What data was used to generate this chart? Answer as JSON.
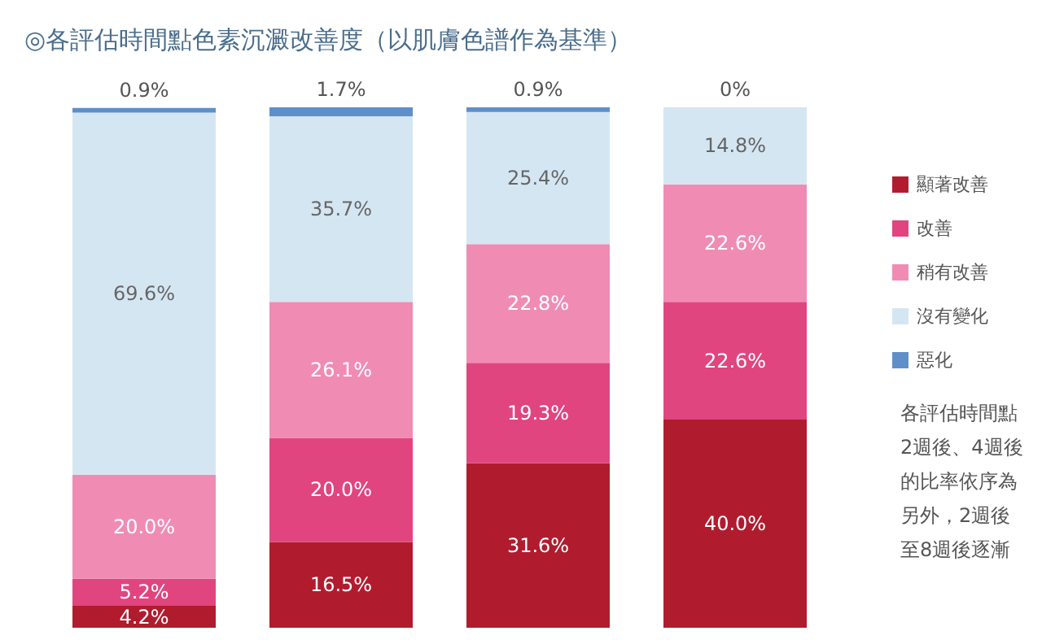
{
  "chart_data": {
    "type": "bar",
    "stacked": true,
    "title": "◎各評估時間點色素沉澱改善度（以肌膚色譜作為基準）",
    "categories": [
      null,
      null,
      null,
      null
    ],
    "series": [
      {
        "name": "顯著改善",
        "color": "#b01c2e",
        "values": [
          4.2,
          16.5,
          31.6,
          40.0
        ],
        "value_labels": [
          "4.2%",
          "16.5%",
          "31.6%",
          "40.0%"
        ]
      },
      {
        "name": "改善",
        "color": "#e0457f",
        "values": [
          5.2,
          20.0,
          19.3,
          22.6
        ],
        "value_labels": [
          "5.2%",
          "20.0%",
          "19.3%",
          "22.6%"
        ]
      },
      {
        "name": "稍有改善",
        "color": "#f08cb4",
        "values": [
          20.0,
          26.1,
          22.8,
          22.6
        ],
        "value_labels": [
          "20.0%",
          "26.1%",
          "22.8%",
          "22.6%"
        ]
      },
      {
        "name": "沒有變化",
        "color": "#d5e6f3",
        "values": [
          69.6,
          35.7,
          25.4,
          14.8
        ],
        "value_labels": [
          "69.6%",
          "35.7%",
          "25.4%",
          "14.8%"
        ]
      },
      {
        "name": "惡化",
        "color": "#5f8fc8",
        "values": [
          0.9,
          1.7,
          0.9,
          0
        ],
        "value_labels": [
          "0.9%",
          "1.7%",
          "0.9%",
          "0%"
        ]
      }
    ],
    "legend": "right",
    "annotations": [
      "各評估時間點",
      "2週後、4週後",
      "的比率依序為",
      "另外，2週後",
      "至8週後逐漸"
    ]
  }
}
